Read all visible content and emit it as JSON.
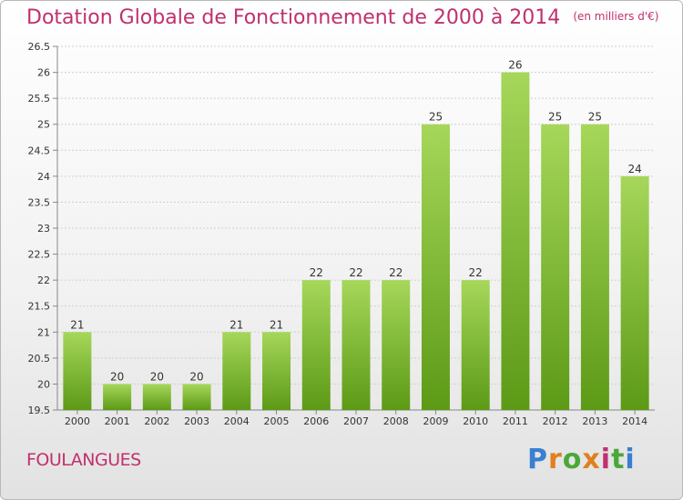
{
  "header": {
    "title": "Dotation Globale de Fonctionnement de 2000 à 2014",
    "unit": "(en milliers d'€)"
  },
  "footer": {
    "town": "FOULANGUES",
    "logo": "Proxiti",
    "logo_colors": [
      "#3a7fd0",
      "#e0801f",
      "#4aa83a",
      "#e0801f",
      "#c0306e",
      "#4aa83a",
      "#3a7fd0"
    ]
  },
  "colors": {
    "bar_light": "#a6d75a",
    "bar_dark": "#5c9a16",
    "title": "#c0306e"
  },
  "chart_data": {
    "type": "bar",
    "categories": [
      "2000",
      "2001",
      "2002",
      "2003",
      "2004",
      "2005",
      "2006",
      "2007",
      "2008",
      "2009",
      "2010",
      "2011",
      "2012",
      "2013",
      "2014"
    ],
    "values": [
      21,
      20,
      20,
      20,
      21,
      21,
      22,
      22,
      22,
      25,
      22,
      26,
      25,
      25,
      24
    ],
    "data_labels": [
      "21",
      "20",
      "20",
      "20",
      "21",
      "21",
      "22",
      "22",
      "22",
      "25",
      "22",
      "26",
      "25",
      "25",
      "24"
    ],
    "ylim": [
      19.5,
      26.5
    ],
    "yticks": [
      "19.5",
      "20",
      "20.5",
      "21",
      "21.5",
      "22",
      "22.5",
      "23",
      "23.5",
      "24",
      "24.5",
      "25",
      "25.5",
      "26",
      "26.5"
    ],
    "grid": true
  }
}
